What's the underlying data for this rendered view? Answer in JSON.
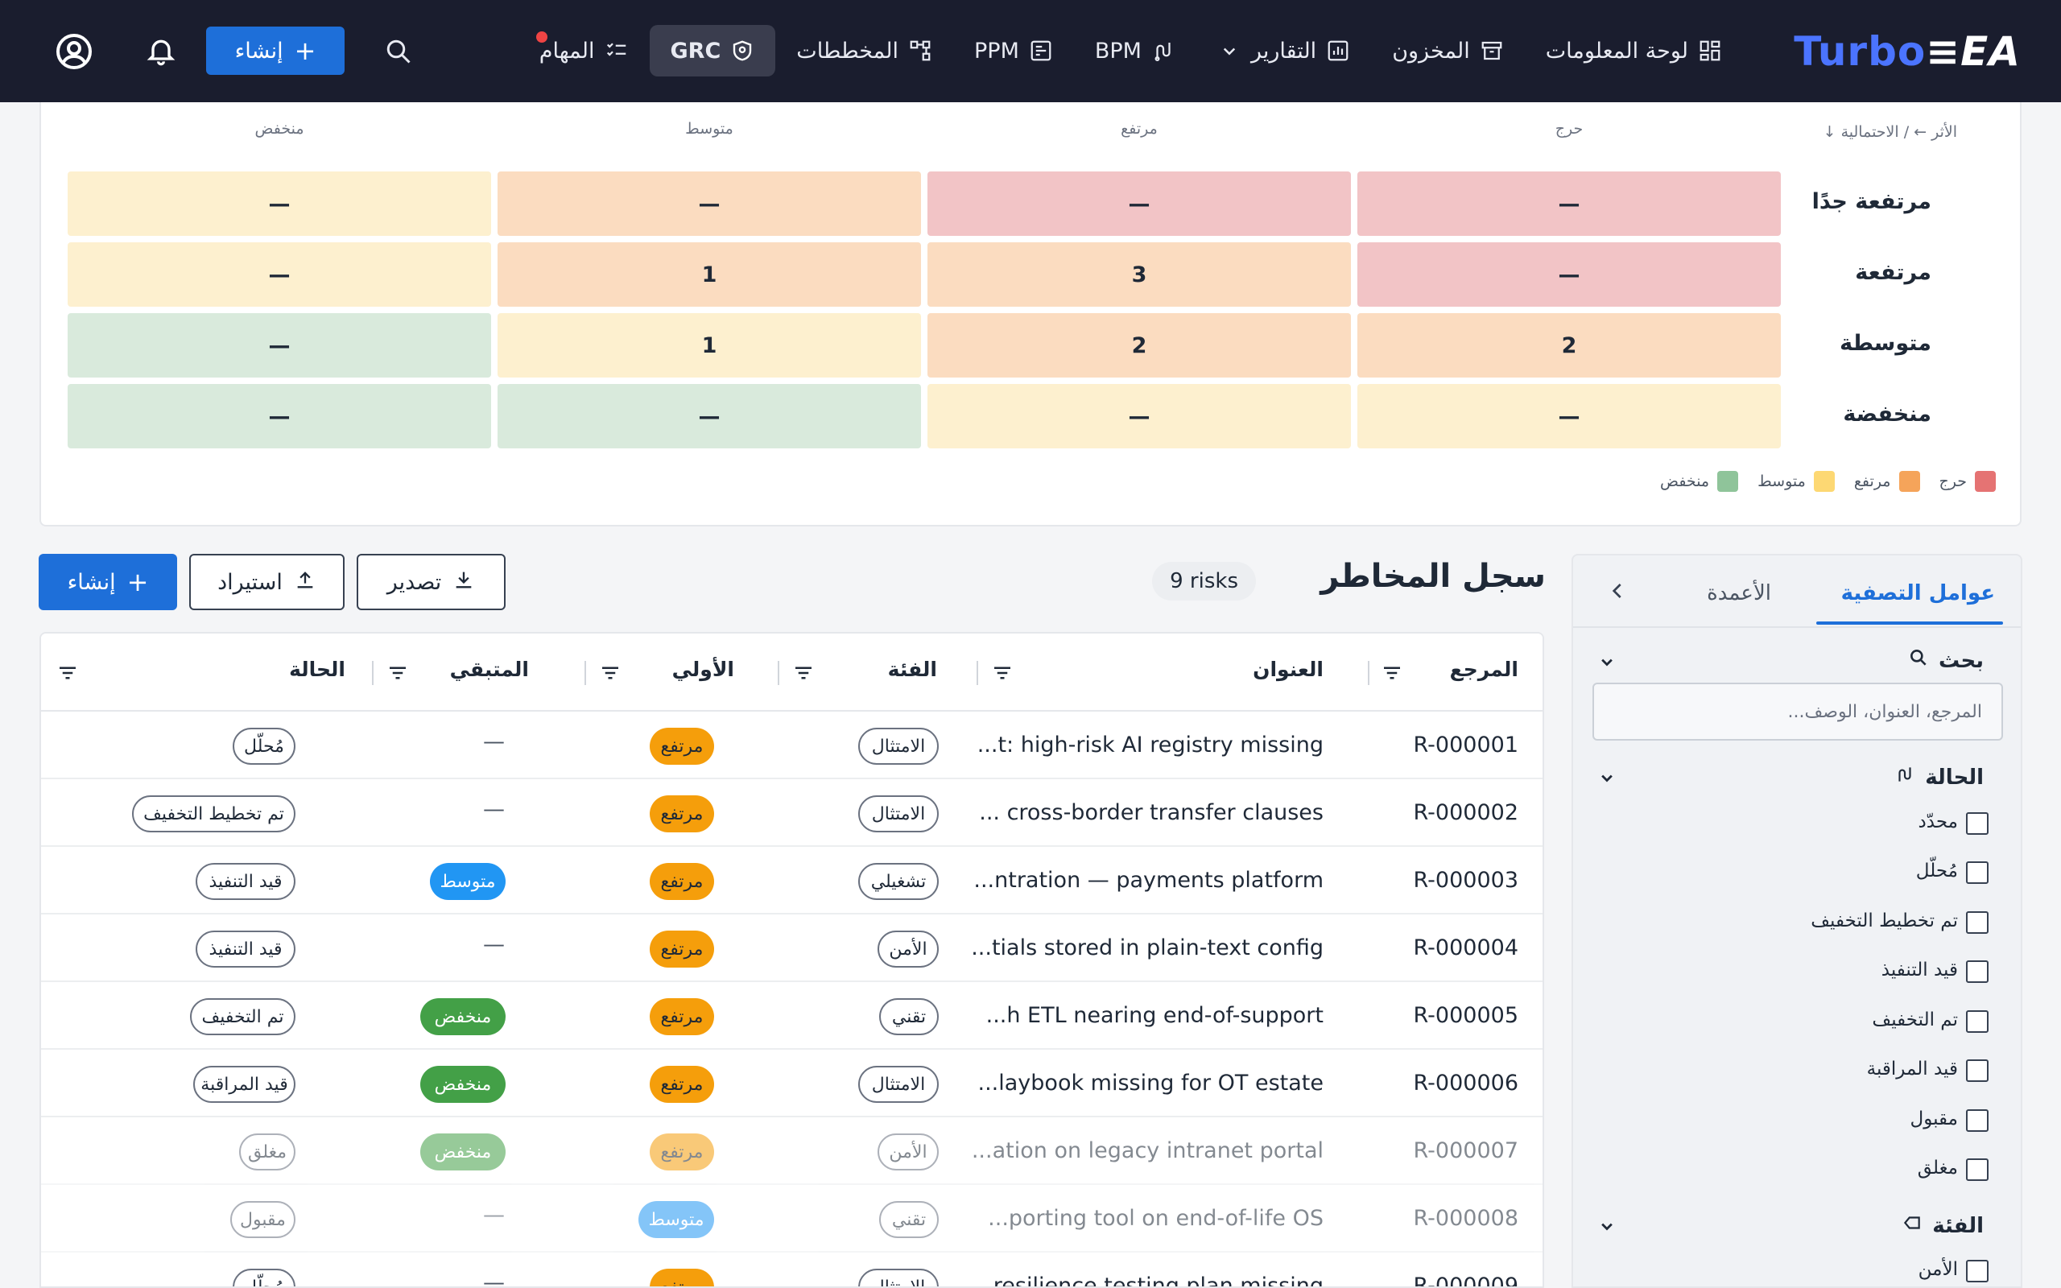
{
  "app": {
    "brand_left": "Turbo",
    "brand_right": "EA"
  },
  "nav": {
    "items": [
      {
        "label": "لوحة المعلومات",
        "icon": "dashboard-icon"
      },
      {
        "label": "المخزون",
        "icon": "archive-icon"
      },
      {
        "label": "التقارير",
        "icon": "report-icon"
      },
      {
        "label": "BPM",
        "icon": "process-icon"
      },
      {
        "label": "PPM",
        "icon": "project-icon"
      },
      {
        "label": "المخططات",
        "icon": "diagram-icon"
      },
      {
        "label": "GRC",
        "icon": "shield-icon"
      },
      {
        "label": "المهام",
        "icon": "tasks-icon"
      }
    ],
    "create_label": "إنشاء"
  },
  "heatmap": {
    "axis_label": "الأثر ← / الاحتمالية ↓",
    "columns": [
      "حرج",
      "مرتفع",
      "متوسط",
      "منخفض"
    ],
    "rows": [
      {
        "label": "مرتفعة جدًا",
        "values": [
          "—",
          "—",
          "—",
          "—"
        ]
      },
      {
        "label": "مرتفعة",
        "values": [
          "—",
          "3",
          "1",
          "—"
        ]
      },
      {
        "label": "متوسطة",
        "values": [
          "2",
          "2",
          "1",
          "—"
        ]
      },
      {
        "label": "منخفضة",
        "values": [
          "—",
          "—",
          "—",
          "—"
        ]
      }
    ],
    "colors": {
      "critical": "#f2c4c6",
      "high": "#fbdcc0",
      "medium": "#fdf0cf",
      "low": "#d9eadc"
    },
    "legend": [
      {
        "label": "حرج",
        "color": "#e57373"
      },
      {
        "label": "مرتفع",
        "color": "#f5a45a"
      },
      {
        "label": "متوسط",
        "color": "#fdd873"
      },
      {
        "label": "منخفض",
        "color": "#8fc49a"
      }
    ]
  },
  "register": {
    "title": "سجل المخاطر",
    "count": "9 risks",
    "export_label": "تصدير",
    "import_label": "استيراد",
    "create_label": "إنشاء",
    "columns": {
      "ref": "المرجع",
      "title": "العنوان",
      "category": "الفئة",
      "initial": "الأولي",
      "residual": "المتبقي",
      "status": "الحالة"
    },
    "rows": [
      {
        "ref": "R-000001",
        "title": "...t: high-risk AI registry missing",
        "category": "الامتثال",
        "initial": "مرتفع",
        "residual": "—",
        "status": "مُحلّل"
      },
      {
        "ref": "R-000002",
        "title": "... cross-border transfer clauses",
        "category": "الامتثال",
        "initial": "مرتفع",
        "residual": "—",
        "status": "تم تخطيط التخفيف"
      },
      {
        "ref": "R-000003",
        "title": "...ntration — payments platform",
        "category": "تشغيلي",
        "initial": "مرتفع",
        "residual": "متوسط",
        "status": "قيد التنفيذ"
      },
      {
        "ref": "R-000004",
        "title": "...tials stored in plain-text config",
        "category": "الأمن",
        "initial": "مرتفع",
        "residual": "—",
        "status": "قيد التنفيذ"
      },
      {
        "ref": "R-000005",
        "title": "...h ETL nearing end-of-support",
        "category": "تقني",
        "initial": "مرتفع",
        "residual": "منخفض",
        "status": "تم التخفيف"
      },
      {
        "ref": "R-000006",
        "title": "...laybook missing for OT estate",
        "category": "الامتثال",
        "initial": "مرتفع",
        "residual": "منخفض",
        "status": "قيد المراقبة"
      },
      {
        "ref": "R-000007",
        "title": "...ation on legacy intranet portal",
        "category": "الأمن",
        "initial": "مرتفع",
        "residual": "منخفض",
        "status": "مغلق"
      },
      {
        "ref": "R-000008",
        "title": "...porting tool on end-of-life OS",
        "category": "تقني",
        "initial": "متوسط",
        "residual": "—",
        "status": "مقبول"
      },
      {
        "ref": "R-000009",
        "title": "...resilience testing plan missing",
        "category": "الامتثال",
        "initial": "مرتفع",
        "residual": "—",
        "status": "مُحلّل"
      }
    ]
  },
  "filters": {
    "tab_filters": "عوامل التصفية",
    "tab_columns": "الأعمدة",
    "search_heading": "بحث",
    "search_placeholder": "المرجع، العنوان، الوصف...",
    "status_heading": "الحالة",
    "status_options": [
      "محدّد",
      "مُحلّل",
      "تم تخطيط التخفيف",
      "قيد التنفيذ",
      "تم التخفيف",
      "قيد المراقبة",
      "مقبول",
      "مغلق"
    ],
    "category_heading": "الفئة",
    "category_options": [
      "الأمن"
    ]
  }
}
